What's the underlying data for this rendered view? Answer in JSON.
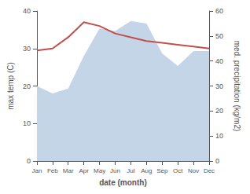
{
  "chart_data": {
    "type": "line",
    "categories": [
      "Jan",
      "Feb",
      "Mar",
      "Apr",
      "May",
      "Jun",
      "Jul",
      "Aug",
      "Sep",
      "Oct",
      "Nov",
      "Dec"
    ],
    "xlabel": "date (month)",
    "ylabel": "max temp (C)",
    "y2label": "med. precipitation (kg/m2)",
    "series": [
      {
        "type": "area",
        "axis": "y2",
        "color": "#c5d5e8",
        "values": [
          30,
          27,
          29,
          42,
          53,
          52,
          56,
          55,
          43,
          38,
          44,
          44
        ]
      },
      {
        "type": "line",
        "color": "#c0504d",
        "values": [
          29.5,
          30.0,
          33.0,
          37.0,
          36.0,
          34.0,
          33.0,
          32.0,
          31.5,
          31.0,
          30.5,
          30.0
        ]
      }
    ],
    "ylim": [
      0,
      40
    ],
    "yticks": [
      0,
      10,
      20,
      30,
      40
    ],
    "y2lim": [
      0,
      60
    ],
    "y2ticks": [
      0,
      10,
      20,
      30,
      40,
      50,
      60
    ],
    "grid": false
  }
}
